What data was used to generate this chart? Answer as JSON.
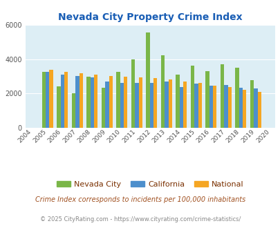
{
  "title": "Nevada City Property Crime Index",
  "years": [
    2004,
    2005,
    2006,
    2007,
    2008,
    2009,
    2010,
    2011,
    2012,
    2013,
    2014,
    2015,
    2016,
    2017,
    2018,
    2019,
    2020
  ],
  "nevada_city": [
    null,
    3250,
    2400,
    2020,
    2980,
    2350,
    3280,
    4000,
    5550,
    4250,
    3100,
    3630,
    3320,
    3700,
    3520,
    2780,
    null
  ],
  "california": [
    null,
    3250,
    3100,
    3020,
    2950,
    2680,
    2620,
    2600,
    2600,
    2680,
    2380,
    2580,
    2470,
    2480,
    2350,
    2280,
    null
  ],
  "national": [
    null,
    3380,
    3270,
    3200,
    3100,
    3020,
    2980,
    2960,
    2890,
    2820,
    2690,
    2630,
    2470,
    2360,
    2220,
    2090,
    null
  ],
  "nevada_city_color": "#7ab648",
  "california_color": "#4d8fcc",
  "national_color": "#f5a623",
  "bg_color": "#ddeef5",
  "ylim": [
    0,
    6000
  ],
  "yticks": [
    0,
    2000,
    4000,
    6000
  ],
  "legend_labels": [
    "Nevada City",
    "California",
    "National"
  ],
  "subtitle": "Crime Index corresponds to incidents per 100,000 inhabitants",
  "footer": "© 2025 CityRating.com - https://www.cityrating.com/crime-statistics/",
  "title_color": "#1a5eb5",
  "subtitle_color": "#a05020",
  "footer_color": "#888888",
  "grid_color": "#ffffff"
}
